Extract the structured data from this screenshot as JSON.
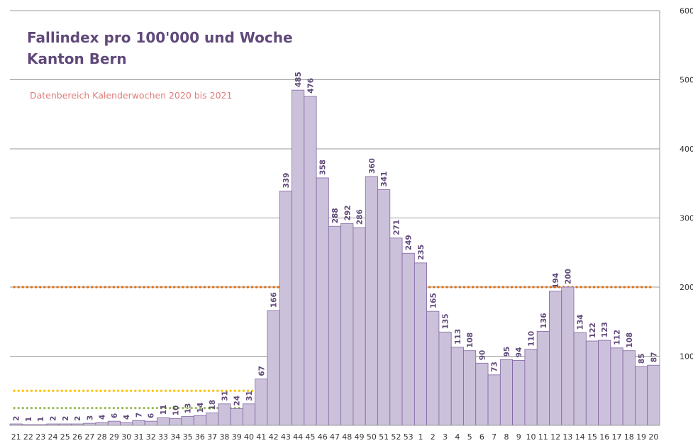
{
  "chart_data": {
    "type": "bar",
    "title_line1": "Fallindex pro 100'000 und Woche",
    "title_line2": "Kanton Bern",
    "subtitle": "Datenbereich Kalenderwochen 2020 bis 2021",
    "categories": [
      "21",
      "22",
      "23",
      "24",
      "25",
      "26",
      "27",
      "28",
      "29",
      "30",
      "31",
      "32",
      "33",
      "34",
      "35",
      "36",
      "37",
      "38",
      "39",
      "40",
      "41",
      "42",
      "43",
      "44",
      "45",
      "46",
      "47",
      "48",
      "49",
      "50",
      "51",
      "52",
      "53",
      "1",
      "2",
      "3",
      "4",
      "5",
      "6",
      "7",
      "8",
      "9",
      "10",
      "11",
      "12",
      "13",
      "14",
      "15",
      "16",
      "17",
      "18",
      "19",
      "20"
    ],
    "values": [
      2,
      1,
      1,
      2,
      2,
      2,
      3,
      4,
      6,
      4,
      7,
      6,
      11,
      10,
      13,
      14,
      18,
      31,
      24,
      31,
      67,
      166,
      339,
      485,
      476,
      358,
      288,
      292,
      286,
      360,
      341,
      271,
      249,
      235,
      165,
      135,
      113,
      108,
      90,
      73,
      95,
      94,
      110,
      136,
      194,
      200,
      134,
      122,
      123,
      112,
      108,
      85,
      87
    ],
    "ylim": [
      0,
      600
    ],
    "yticks": [
      100,
      200,
      300,
      400,
      500,
      600
    ],
    "y_axis_side": "right",
    "reference_lines": [
      {
        "value": 200,
        "color": "#e36c0a",
        "style": "dotted"
      },
      {
        "value": 50,
        "color": "#ffc000",
        "style": "dotted"
      },
      {
        "value": 25,
        "color": "#9bbb59",
        "style": "dotted"
      }
    ],
    "bar_color": "#ccc1da",
    "bar_edge_color": "#8064a2",
    "label_color": "#60497a",
    "gridlines": true
  }
}
